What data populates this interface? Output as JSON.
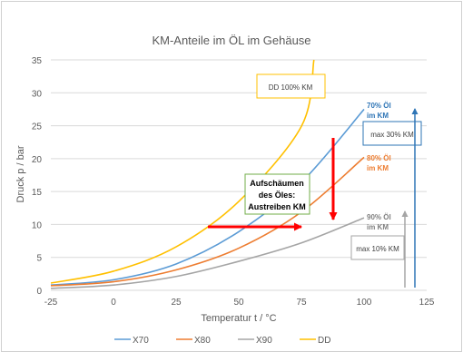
{
  "chart_data": {
    "type": "line",
    "title": "KM-Anteile im ÖL im Gehäuse",
    "xlabel": "Temperatur t / °C",
    "ylabel": "Druck p / bar",
    "xlim": [
      -25,
      125
    ],
    "ylim": [
      0,
      35
    ],
    "xticks": [
      -25,
      0,
      25,
      50,
      75,
      100,
      125
    ],
    "yticks": [
      0,
      5,
      10,
      15,
      20,
      25,
      30,
      35
    ],
    "grid": true,
    "legend_position": "bottom",
    "series": [
      {
        "name": "X70",
        "color": "#5b9bd5",
        "x": [
          -25,
          0,
          25,
          50,
          75,
          100
        ],
        "y": [
          0.8,
          1.6,
          4.0,
          8.9,
          16.4,
          27.5
        ]
      },
      {
        "name": "X80",
        "color": "#ed7d31",
        "x": [
          -25,
          0,
          25,
          50,
          75,
          100
        ],
        "y": [
          0.7,
          1.3,
          3.1,
          6.4,
          11.9,
          20.2
        ]
      },
      {
        "name": "X90",
        "color": "#a5a5a5",
        "x": [
          -25,
          0,
          25,
          50,
          75,
          100
        ],
        "y": [
          0.3,
          0.8,
          2.1,
          4.4,
          7.2,
          11.0
        ]
      },
      {
        "name": "DD",
        "color": "#ffc000",
        "x": [
          -25,
          0,
          25,
          50,
          75,
          80
        ],
        "y": [
          1.1,
          2.9,
          6.6,
          13.5,
          24.9,
          35.0
        ]
      }
    ],
    "annotations": {
      "dd_box": "DD 100% KM",
      "label_70": [
        "70% Öl",
        "im KM"
      ],
      "label_80": [
        "80% Öl",
        "im KM"
      ],
      "label_90": [
        "90% Öl",
        "im KM"
      ],
      "max30": "max 30% KM",
      "max10": "max 10% KM",
      "foam": [
        "Aufschäumen",
        "des Öles:",
        "Austreiben KM"
      ]
    }
  }
}
